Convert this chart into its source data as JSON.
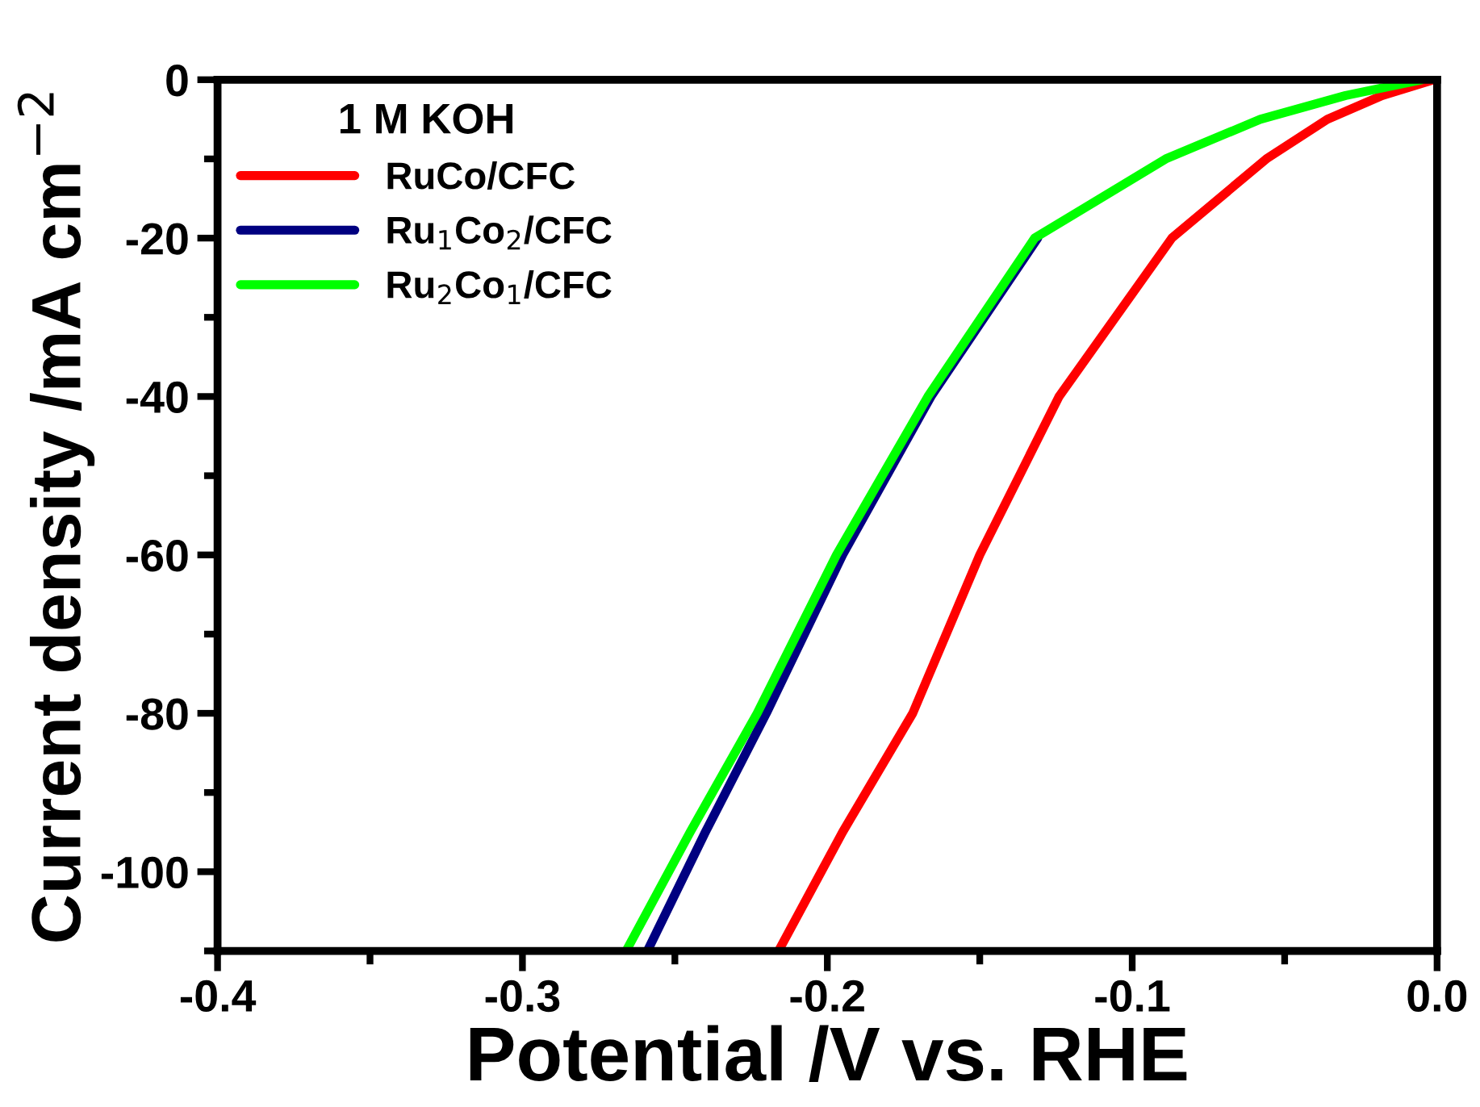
{
  "chart_data": {
    "type": "line",
    "xlabel": "Potential /V vs. RHE",
    "ylabel": "Current density /mA cm$^{−2}$",
    "legend_title": "1 M KOH",
    "legend": "top left",
    "marker": "none",
    "line_style": "solid",
    "xlim": [
      -0.4,
      0.0
    ],
    "ylim": [
      -110,
      0
    ],
    "xticks": [
      {
        "value": -0.4,
        "label": "-0.4"
      },
      {
        "value": -0.3,
        "label": "-0.3"
      },
      {
        "value": -0.2,
        "label": "-0.2"
      },
      {
        "value": -0.1,
        "label": "-0.1"
      },
      {
        "value": 0.0,
        "label": "0.0"
      }
    ],
    "yticks": [
      {
        "value": 0,
        "label": "0"
      },
      {
        "value": -20,
        "label": "-20"
      },
      {
        "value": -40,
        "label": "-40"
      },
      {
        "value": -60,
        "label": "-60"
      },
      {
        "value": -80,
        "label": "-80"
      },
      {
        "value": -100,
        "label": "-100"
      }
    ],
    "series": [
      {
        "name": "RuCo/CFC",
        "color": "#ff0000",
        "x": [
          -0.216,
          -0.195,
          -0.172,
          -0.15,
          -0.124,
          -0.087,
          -0.056,
          -0.036,
          -0.018,
          -0.001
        ],
        "values": [
          -110,
          -95,
          -80,
          -60,
          -40,
          -20,
          -10,
          -5,
          -2,
          0
        ]
      },
      {
        "name": "Ru$_{1}$Co$_{2}$/CFC",
        "color": "#000080",
        "x": [
          -0.259,
          -0.24,
          -0.22,
          -0.195,
          -0.166,
          -0.131,
          null,
          null,
          null,
          null
        ],
        "values": [
          -110,
          -95,
          -80,
          -60,
          -40,
          -20,
          null,
          null,
          null,
          null
        ]
      },
      {
        "name": "Ru$_{2}$Co$_{1}$/CFC",
        "color": "#00ff00",
        "x": [
          -0.266,
          -0.245,
          -0.223,
          -0.197,
          -0.167,
          -0.132,
          -0.089,
          -0.058,
          -0.03,
          -0.005
        ],
        "values": [
          -110,
          -95,
          -80,
          -60,
          -40,
          -20,
          -10,
          -5,
          -2,
          0
        ]
      }
    ]
  }
}
